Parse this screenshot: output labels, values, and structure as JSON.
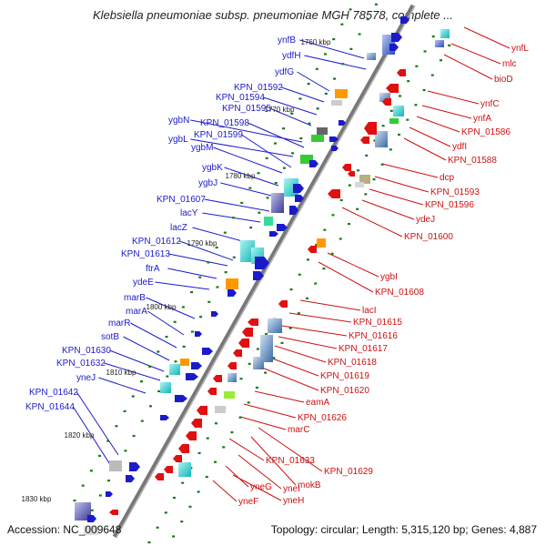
{
  "title": "Klebsiella pneumoniae subsp. pneumoniae MGH 78578, complete ...",
  "footer": {
    "accession": "Accession: NC_009648",
    "topology": "Topology: circular; Length: 5,315,120 bp; Genes: 4,887"
  },
  "kbp_ticks": [
    "1760 kbp",
    "1770 kbp",
    "1780 kbp",
    "1790 kbp",
    "1800 kbp",
    "1810 kbp",
    "1820 kbp",
    "1830 kbp"
  ],
  "genes_left": [
    "ynfB",
    "ydfH",
    "ydfG",
    "KPN_01592",
    "KPN_01594",
    "KPN_01595",
    "ygbN",
    "KPN_01598",
    "ygbL",
    "KPN_01599",
    "ygbM",
    "ygbK",
    "ygbJ",
    "KPN_01607",
    "lacY",
    "lacZ",
    "KPN_01612",
    "KPN_01613",
    "ftrA",
    "ydeE",
    "marB",
    "marA",
    "marR",
    "sotB",
    "KPN_01630",
    "KPN_01632",
    "yneJ",
    "KPN_01642",
    "KPN_01644"
  ],
  "genes_right": [
    "ynfL",
    "mlc",
    "bioD",
    "ynfC",
    "ynfA",
    "KPN_01586",
    "ydfI",
    "KPN_01588",
    "dcp",
    "KPN_01593",
    "KPN_01596",
    "ydeJ",
    "KPN_01600",
    "ygbI",
    "KPN_01608",
    "lacI",
    "KPN_01615",
    "KPN_01616",
    "KPN_01617",
    "KPN_01618",
    "KPN_01619",
    "KPN_01620",
    "eamA",
    "KPN_01626",
    "marC",
    "KPN_01633",
    "KPN_01629",
    "mokB",
    "yneI",
    "yneG",
    "yneH",
    "yneF"
  ],
  "colors": {
    "forward": "#1a1acc",
    "reverse": "#e01010",
    "label_left": "#1a1acc",
    "label_right": "#cc1111",
    "backbone": "#777777",
    "gc": "#1a7a1a"
  }
}
